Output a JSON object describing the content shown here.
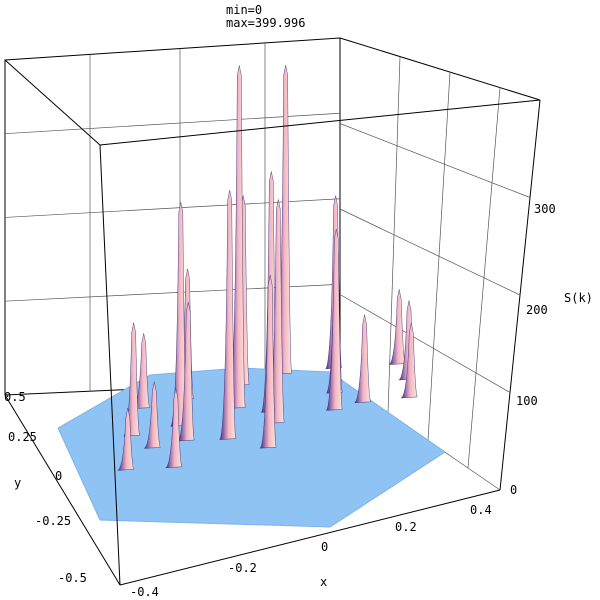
{
  "chart_data": {
    "type": "surface3d",
    "annotations": {
      "min": "min=0",
      "max": "max=399.996"
    },
    "xlabel": "x",
    "ylabel": "y",
    "zlabel": "S(k)",
    "xlim": [
      -0.5,
      0.5
    ],
    "ylim": [
      -0.5,
      0.5
    ],
    "zlim": [
      0,
      400
    ],
    "x_ticks": [
      "-0.4",
      "-0.2",
      "0",
      "0.2",
      "0.4"
    ],
    "y_ticks": [
      "0.5",
      "0.25",
      "0",
      "-0.25",
      "-0.5"
    ],
    "z_ticks": [
      "0",
      "100",
      "200",
      "300"
    ],
    "grid": true,
    "colors": {
      "surface": "#8fc3f4",
      "peak_light": "#f3b6c4",
      "peak_dark": "#3e2a8c"
    },
    "peaks": [
      {
        "x": -0.45,
        "y": 0.26,
        "z": 85
      },
      {
        "x": -0.42,
        "y": 0.05,
        "z": 130
      },
      {
        "x": -0.32,
        "y": -0.08,
        "z": 75
      },
      {
        "x": -0.36,
        "y": -0.22,
        "z": 70
      },
      {
        "x": -0.32,
        "y": 0.27,
        "z": 150
      },
      {
        "x": -0.28,
        "y": 0.06,
        "z": 260
      },
      {
        "x": -0.22,
        "y": -0.07,
        "z": 160
      },
      {
        "x": -0.2,
        "y": -0.27,
        "z": 90
      },
      {
        "x": -0.16,
        "y": 0.3,
        "z": 220
      },
      {
        "x": -0.12,
        "y": 0.12,
        "z": 399.996
      },
      {
        "x": -0.08,
        "y": -0.12,
        "z": 290
      },
      {
        "x": -0.04,
        "y": 0.33,
        "z": 360
      },
      {
        "x": 0.0,
        "y": 0.04,
        "z": 280
      },
      {
        "x": 0.05,
        "y": -0.06,
        "z": 260
      },
      {
        "x": 0.08,
        "y": -0.25,
        "z": 200
      },
      {
        "x": 0.12,
        "y": 0.3,
        "z": 200
      },
      {
        "x": 0.18,
        "y": 0.1,
        "z": 175
      },
      {
        "x": 0.22,
        "y": -0.04,
        "z": 210
      },
      {
        "x": 0.3,
        "y": -0.02,
        "z": 100
      },
      {
        "x": 0.33,
        "y": 0.24,
        "z": 85
      },
      {
        "x": 0.4,
        "y": 0.1,
        "z": 90
      },
      {
        "x": 0.45,
        "y": -0.05,
        "z": 85
      }
    ]
  }
}
